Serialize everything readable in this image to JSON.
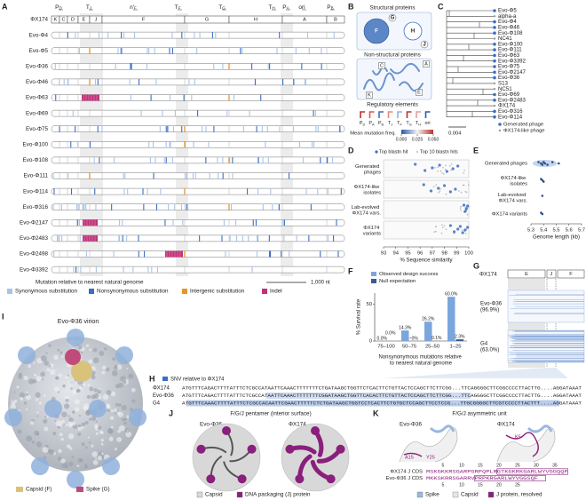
{
  "panel_labels": [
    "A",
    "B",
    "C",
    "D",
    "E",
    "F",
    "G",
    "H",
    "I",
    "J",
    "K"
  ],
  "panel_a": {
    "elements": [
      {
        "main": "P",
        "sub": "D"
      },
      {
        "main": "T",
        "sub": "J"
      },
      {
        "main": "n'",
        "sub": "F"
      },
      {
        "main": "T",
        "sub": "F"
      },
      {
        "main": "T",
        "sub": "G"
      },
      {
        "main": "T",
        "sub": "H"
      },
      {
        "main": "P",
        "sub": "A"
      },
      {
        "main": "ori"
      },
      {
        "main": "P",
        "sub": "B"
      }
    ],
    "genes": [
      "K",
      "C",
      "D",
      "E",
      "J",
      "F",
      "G",
      "H",
      "A",
      "B"
    ],
    "rows": [
      "ΦX174",
      "Evo-Φ4",
      "Evo-Φ5",
      "Evo-Φ36",
      "Evo-Φ46",
      "Evo-Φ63",
      "Evo-Φ69",
      "Evo-Φ75",
      "Evo-Φ100",
      "Evo-Φ108",
      "Evo-Φ111",
      "Evo-Φ114",
      "Evo-Φ316",
      "Evo-Φ2147",
      "Evo-Φ2483",
      "Evo-Φ2498",
      "Evo-Φ3392"
    ],
    "legend_title": "Mutation relative to nearest natural genome",
    "legend": [
      {
        "name": "Synonymous substitution",
        "color": "#a9c4e8"
      },
      {
        "name": "Nonsynonymous substitution",
        "color": "#3a6fc4"
      },
      {
        "name": "Intergenic substitution",
        "color": "#e8952e"
      },
      {
        "name": "Indel",
        "color": "#c0327a"
      }
    ],
    "scale": "1,000 nt"
  },
  "panel_b": {
    "structural_title": "Structural proteins",
    "structural": [
      "F",
      "G",
      "H",
      "J"
    ],
    "nonstructural_title": "Non-structural proteins",
    "nonstructural": [
      "A",
      "C",
      "E",
      "K"
    ],
    "regulatory_title": "Regulatory elements",
    "regulatory": [
      {
        "main": "P",
        "sub": "D"
      },
      {
        "main": "P",
        "sub": "A"
      },
      {
        "main": "P",
        "sub": "B"
      },
      {
        "main": "T",
        "sub": "J"
      },
      {
        "main": "T",
        "sub": "F"
      },
      {
        "main": "T",
        "sub": "G"
      },
      {
        "main": "T",
        "sub": "H"
      },
      {
        "main": "ori"
      }
    ],
    "colorbar_title": "Mean mutation freq.",
    "colorbar_lim": [
      0,
      0.05
    ],
    "colorbar_ticks": [
      {
        "value": 0,
        "label": "0.000"
      },
      {
        "value": 0.025,
        "label": "0.025"
      },
      {
        "value": 0.05,
        "label": "0.050"
      }
    ]
  },
  "panel_c": {
    "leaves": [
      {
        "name": "Evo-Φ5",
        "generated": true
      },
      {
        "name": "alpha-a",
        "generated": false
      },
      {
        "name": "Evo-Φ4",
        "generated": true
      },
      {
        "name": "Evo-Φ46",
        "generated": true
      },
      {
        "name": "Evo-Φ108",
        "generated": true
      },
      {
        "name": "NC41",
        "generated": false
      },
      {
        "name": "Evo-Φ100",
        "generated": true
      },
      {
        "name": "Evo-Φ111",
        "generated": true
      },
      {
        "name": "Evo-Φ63",
        "generated": true
      },
      {
        "name": "Evo-Φ3392",
        "generated": true
      },
      {
        "name": "Evo-Φ75",
        "generated": true
      },
      {
        "name": "Evo-Φ2147",
        "generated": true
      },
      {
        "name": "Evo-Φ36",
        "generated": true
      },
      {
        "name": "S13",
        "generated": false
      },
      {
        "name": "NC51",
        "generated": false
      },
      {
        "name": "Evo-Φ69",
        "generated": true
      },
      {
        "name": "Evo-Φ2483",
        "generated": true
      },
      {
        "name": "ΦX174",
        "generated": false
      },
      {
        "name": "Evo-Φ316",
        "generated": true
      },
      {
        "name": "Evo-Φ114",
        "generated": true
      }
    ],
    "legend": [
      {
        "name": "Generated phage",
        "color": "#3a6fc4"
      },
      {
        "name": "ΦX174-like phage",
        "color": "#9a9a9a"
      }
    ],
    "scale": "0.004"
  },
  "panel_d": {
    "legend": [
      {
        "name": "Top blastn hit",
        "color": "#3a6fc4"
      },
      {
        "name": "Top 10 blastn hits",
        "color": "#b5b5b5"
      }
    ],
    "rows": [
      "Generated phages",
      "ΦX174-like isolates",
      "Lab-evolved ΦX174 vars.",
      "ΦX174 variants"
    ],
    "values": [
      [
        95.6,
        96.4,
        97.0,
        97.6,
        98.2,
        98.7,
        99.1
      ],
      [
        96.3,
        96.9,
        97.5,
        98.0,
        98.5,
        98.9
      ],
      [
        99.6,
        99.7,
        99.8,
        99.9
      ],
      [
        98.5,
        98.8,
        99.1,
        99.3,
        99.5,
        99.7,
        99.9
      ]
    ],
    "xlim": [
      93,
      100
    ],
    "xticks": [
      93,
      94,
      95,
      96,
      97,
      98,
      99,
      100
    ],
    "xlabel": "% Sequence similarity"
  },
  "panel_e": {
    "rows": [
      "Generated phages",
      "ΦX174-like isolates",
      "Lab-evolved ΦX174 vars.",
      "ΦX174 variants"
    ],
    "values": [
      [
        5.36,
        5.38,
        5.39,
        5.4,
        5.41,
        5.43,
        5.47,
        5.52
      ],
      [
        5.38,
        5.39,
        5.4
      ],
      [
        5.39
      ],
      [
        5.38,
        5.39
      ]
    ],
    "xlim": [
      5.3,
      5.7
    ],
    "xticks": [
      5.3,
      5.4,
      5.5,
      5.6,
      5.7
    ],
    "xlabel": "Genome length (kb)"
  },
  "panel_f": {
    "type": "bar",
    "ylabel": "% Survival rate",
    "xlabel": "Nonsynonymous mutations relative to nearest natural genome",
    "categories": [
      "75–100",
      "50–75",
      "25–50",
      "1–25"
    ],
    "ylim": [
      0,
      65
    ],
    "yticks": [
      0,
      50
    ],
    "series": [
      {
        "name": "Observed design success",
        "color": "#7aa6dc",
        "values": [
          0.0,
          14.3,
          26.2,
          60.0
        ],
        "value_labels": [
          "0.0%",
          "14.3%",
          "26.2%",
          "60.0%"
        ]
      },
      {
        "name": "Null expectation",
        "color": "#3a5a8c",
        "values": [
          0.0,
          0,
          0.1,
          2.3
        ],
        "value_labels": [
          "0.0%",
          "~0%",
          "0.1%",
          "2.3%"
        ]
      }
    ]
  },
  "panel_g": {
    "reference": "ΦX174",
    "genes": [
      "E",
      "J",
      "F"
    ],
    "rows": [
      "Evo-Φ36 (96.9%)",
      "G4 (63.0%)"
    ]
  },
  "panel_h": {
    "legend": "SNV relative to ΦX174",
    "rows": [
      {
        "name": "ΦX174",
        "sequence": "ATGTTTCAGACTTTTATTTCTCGCCATAATTCAAACTTTTTTTCTGATAAGCTGGTTCTCACTTCTGTTACTCCAGCTTCTTCGG...TTCAGGGGCTTCGGCCCCTTACTTG....AGGATAAAT"
      },
      {
        "name": "Evo-Φ36",
        "sequence": "ATGTTTCAGACTTTTATTTCTCGCCATAATTCAAACTTTTTTTCGGATAAGCTGGTTCACACTTCTGTTACTCCAGCTTCTTCGG...TTCAGGGGCTTCGGCCCCTTACTTG....AGGATAAAT"
      },
      {
        "name": "G4",
        "sequence": "ATGTTTCAAACTTTTATTTCTCGCCACAATTCGAACTTTTTCTCTGATAAGCTGGTCCTCACTTCTGTGCTCCAGCTTCCTCCG...TTGCGGGGCTTCGTCCCCTTACTTT....AGGATAAAT"
      }
    ]
  },
  "panel_i": {
    "title": "Evo-Φ36 virion",
    "legend": [
      {
        "name": "Capsid (F)",
        "color": "#d9c27a"
      },
      {
        "name": "Spike (G)",
        "color": "#c04a7a"
      }
    ]
  },
  "panel_j": {
    "title": "F/G/J pentamer (interior surface)",
    "structures": [
      "Evo-Φ36",
      "ΦX174"
    ],
    "legend": [
      {
        "name": "Capsid",
        "color": "#d8d8d8"
      },
      {
        "name": "DNA packaging (J) protein",
        "color": "#8a1f7c"
      }
    ]
  },
  "panel_k": {
    "title": "F/G/J asymmetric unit",
    "structures": [
      "Evo-Φ36",
      "ΦX174"
    ],
    "residues": [
      "A15",
      "Y25",
      "K5"
    ],
    "ruler_top": [
      5,
      10,
      15,
      20,
      25,
      30,
      35
    ],
    "sequences": [
      {
        "name": "ΦX174 J CDS",
        "sequence": "MSKGKKRSGARPGRPQPLRGTKGKRKGARLWYVGGQQF"
      },
      {
        "name": "Evo-Φ36 J CDS",
        "sequence": "MKKSKRRSGARRVPRPKRGARLWYVGGSQF"
      }
    ],
    "ruler_bottom": [
      5,
      10,
      15,
      20,
      25
    ],
    "legend": [
      {
        "name": "Spike",
        "color": "#9ab8e0"
      },
      {
        "name": "Capsid",
        "color": "#e6e6e6"
      },
      {
        "name": "J protein, resolved",
        "color": "#8a1f7c"
      }
    ]
  }
}
